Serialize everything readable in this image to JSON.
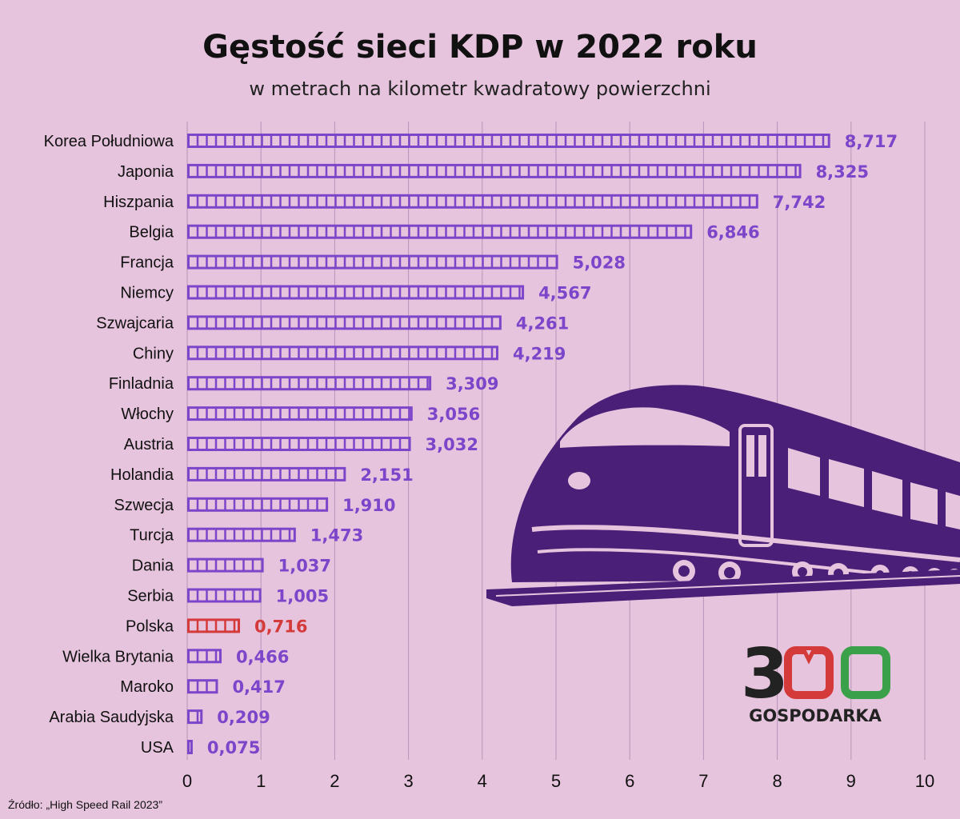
{
  "title": "Gęstość sieci KDP w 2022 roku",
  "subtitle": "w metrach na kilometr kwadratowy powierzchni",
  "source": "Źródło: „High Speed Rail 2023”",
  "logo": {
    "text": "300",
    "subtext": "GOSPODARKA"
  },
  "colors": {
    "background": "#e7c4dd",
    "bar": "#7d45c9",
    "highlight": "#d43a3a",
    "train": "#4a1f78",
    "grid": "#b794b8"
  },
  "chart_data": {
    "type": "bar",
    "orientation": "horizontal",
    "title": "Gęstość sieci KDP w 2022 roku",
    "subtitle": "w metrach na kilometr kwadratowy powierzchni",
    "categories": [
      "Korea Południowa",
      "Japonia",
      "Hiszpania",
      "Belgia",
      "Francja",
      "Niemcy",
      "Szwajcaria",
      "Chiny",
      "Finladnia",
      "Włochy",
      "Austria",
      "Holandia",
      "Szwecja",
      "Turcja",
      "Dania",
      "Serbia",
      "Polska",
      "Wielka Brytania",
      "Maroko",
      "Arabia Saudyjska",
      "USA"
    ],
    "values": [
      8.717,
      8.325,
      7.742,
      6.846,
      5.028,
      4.567,
      4.261,
      4.219,
      3.309,
      3.056,
      3.032,
      2.151,
      1.91,
      1.473,
      1.037,
      1.005,
      0.716,
      0.466,
      0.417,
      0.209,
      0.075
    ],
    "value_labels": [
      "8,717",
      "8,325",
      "7,742",
      "6,846",
      "5,028",
      "4,567",
      "4,261",
      "4,219",
      "3,309",
      "3,056",
      "3,032",
      "2,151",
      "1,910",
      "1,473",
      "1,037",
      "1,005",
      "0,716",
      "0,466",
      "0,417",
      "0,209",
      "0,075"
    ],
    "highlight": "Polska",
    "xlim": [
      0,
      10
    ],
    "xticks": [
      "0",
      "1",
      "2",
      "3",
      "4",
      "5",
      "6",
      "7",
      "8",
      "9",
      "10"
    ],
    "grid": "vertical",
    "legend": "none"
  }
}
